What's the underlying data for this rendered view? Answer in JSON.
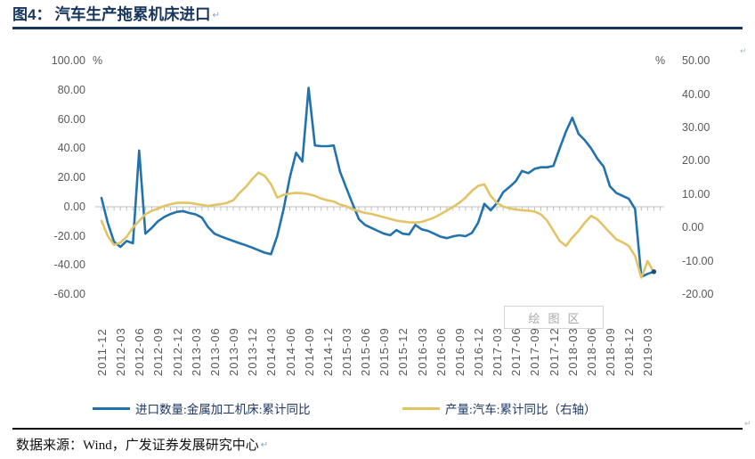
{
  "header": {
    "figure_label": "图4：",
    "title": "汽车生产拖累机床进口"
  },
  "marks": {
    "return_mark": "↵"
  },
  "footer": {
    "source_text": "数据来源：Wind，广发证券发展研究中心"
  },
  "legend": [
    {
      "label": "进口数量:金属加工机床:累计同比",
      "color": "#2272AE"
    },
    {
      "label": "产量:汽车:累计同比（右轴）",
      "color": "#E2C466"
    }
  ],
  "chart_data": {
    "type": "line",
    "title": "汽车生产拖累机床进口",
    "watermark": "绘图区",
    "left_axis": {
      "unit": "%",
      "max": 100,
      "min": -60,
      "tick_labels": [
        "100.00",
        "80.00",
        "60.00",
        "40.00",
        "20.00",
        "0.00",
        "-20.00",
        "-40.00",
        "-60.00"
      ]
    },
    "right_axis": {
      "unit": "%",
      "max": 50,
      "min": -20,
      "tick_labels": [
        "50.00",
        "40.00",
        "30.00",
        "20.00",
        "10.00",
        "0.00",
        "-10.00",
        "-20.00"
      ]
    },
    "x_tick_labels": [
      "2011-12",
      "2012-03",
      "2012-06",
      "2012-09",
      "2012-12",
      "2013-03",
      "2013-06",
      "2013-09",
      "2013-12",
      "2014-03",
      "2014-06",
      "2014-09",
      "2014-12",
      "2015-03",
      "2015-06",
      "2015-09",
      "2015-12",
      "2016-03",
      "2016-06",
      "2016-09",
      "2016-12",
      "2017-03",
      "2017-06",
      "2017-09",
      "2017-12",
      "2018-03",
      "2018-06",
      "2018-09",
      "2018-12",
      "2019-03"
    ],
    "x_tick_every_n_months": 3,
    "months": [
      "2011-12",
      "2012-01",
      "2012-02",
      "2012-03",
      "2012-04",
      "2012-05",
      "2012-06",
      "2012-07",
      "2012-08",
      "2012-09",
      "2012-10",
      "2012-11",
      "2012-12",
      "2013-01",
      "2013-02",
      "2013-03",
      "2013-04",
      "2013-05",
      "2013-06",
      "2013-07",
      "2013-08",
      "2013-09",
      "2013-10",
      "2013-11",
      "2013-12",
      "2014-01",
      "2014-02",
      "2014-03",
      "2014-04",
      "2014-05",
      "2014-06",
      "2014-07",
      "2014-08",
      "2014-09",
      "2014-10",
      "2014-11",
      "2014-12",
      "2015-01",
      "2015-02",
      "2015-03",
      "2015-04",
      "2015-05",
      "2015-06",
      "2015-07",
      "2015-08",
      "2015-09",
      "2015-10",
      "2015-11",
      "2015-12",
      "2016-01",
      "2016-02",
      "2016-03",
      "2016-04",
      "2016-05",
      "2016-06",
      "2016-07",
      "2016-08",
      "2016-09",
      "2016-10",
      "2016-11",
      "2016-12",
      "2017-01",
      "2017-02",
      "2017-03",
      "2017-04",
      "2017-05",
      "2017-06",
      "2017-07",
      "2017-08",
      "2017-09",
      "2017-10",
      "2017-11",
      "2017-12",
      "2018-01",
      "2018-02",
      "2018-03",
      "2018-04",
      "2018-05",
      "2018-06",
      "2018-07",
      "2018-08",
      "2018-09",
      "2018-10",
      "2018-11",
      "2018-12",
      "2019-01",
      "2019-02",
      "2019-03",
      "2019-04"
    ],
    "series": [
      {
        "name": "进口数量:金属加工机床:累计同比",
        "axis": "left",
        "color": "#2272AE",
        "end_marker": true,
        "values": [
          6,
          -11,
          -24,
          -27.5,
          -23.5,
          -25,
          38.5,
          -18.5,
          -14.5,
          -10,
          -7,
          -5,
          -3.5,
          -3,
          -4.3,
          -5.2,
          -7.5,
          -14,
          -18.5,
          -20.3,
          -21.9,
          -23.5,
          -25,
          -26.4,
          -28,
          -29.8,
          -31.5,
          -32.5,
          -20,
          -2,
          20,
          37,
          31,
          81.5,
          42,
          41.5,
          41.5,
          42,
          24,
          13,
          2,
          -8.5,
          -12.5,
          -14.5,
          -16.5,
          -18.5,
          -19.5,
          -16,
          -18.5,
          -19,
          -12.5,
          -15.5,
          -16.5,
          -18.5,
          -20.5,
          -21.5,
          -20.3,
          -19.6,
          -20.2,
          -18,
          -11,
          2,
          -2.5,
          2.5,
          10,
          13.5,
          17.5,
          24.5,
          23,
          26,
          27,
          27,
          28,
          40,
          51.5,
          61,
          50,
          45.5,
          40,
          33,
          27.5,
          14,
          9.5,
          7.5,
          5.5,
          -1.5,
          -48,
          -46,
          -44.5
        ]
      },
      {
        "name": "产量:汽车:累计同比（右轴）",
        "axis": "right",
        "color": "#E2C466",
        "end_marker": false,
        "values": [
          2,
          -2.5,
          -5.2,
          -4.5,
          -2.8,
          0,
          2,
          4,
          5,
          5.7,
          6.5,
          7,
          7.4,
          7.4,
          7.4,
          7.1,
          6.8,
          6.5,
          6.8,
          7,
          7.4,
          8.2,
          10.4,
          12.2,
          14.5,
          16.5,
          15.5,
          13,
          9,
          9.8,
          10.2,
          10.4,
          10.3,
          10,
          9.5,
          8.7,
          8.2,
          7.8,
          6.9,
          6.4,
          5.5,
          4.9,
          4.4,
          4.1,
          3.6,
          3.1,
          2.6,
          2.1,
          1.8,
          1.6,
          1.5,
          1.7,
          2.3,
          3,
          4,
          5.1,
          6.2,
          7.4,
          9,
          11,
          12.5,
          13,
          9.5,
          7.4,
          6.3,
          5.8,
          5.4,
          5.2,
          5.1,
          4.8,
          4,
          2.1,
          -1,
          -4,
          -5.5,
          -3,
          -1,
          1.5,
          3.5,
          2.5,
          0.5,
          -1.5,
          -3.5,
          -4.4,
          -5.5,
          -8.5,
          -15,
          -10,
          -13.5
        ]
      }
    ],
    "zero_line_axis": "left",
    "grid": "category-axis-with-month-ticks-only",
    "legend_position": "bottom"
  }
}
